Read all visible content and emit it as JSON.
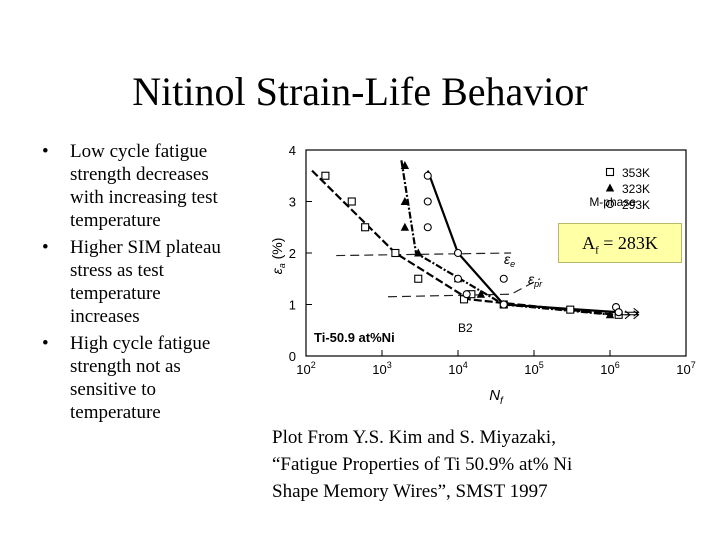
{
  "slide": {
    "title": "Nitinol Strain-Life Behavior",
    "bullets": [
      "Low cycle fatigue strength decreases with increasing test temperature",
      "Higher SIM plateau stress as test temperature increases",
      "High cycle fatigue strength not as sensitive to temperature"
    ],
    "af_callout": {
      "prefix": "A",
      "sub": "f",
      "suffix": " = 283K"
    },
    "caption_lines": [
      "Plot From Y.S. Kim and S. Miyazaki,",
      "“Fatigue Properties of Ti 50.9% at% Ni",
      "Shape Memory Wires”, SMST 1997"
    ],
    "bullet_glyph": "•"
  },
  "chart_data": {
    "type": "scatter",
    "x_scale": "log",
    "xlim": [
      100,
      10000000
    ],
    "ylim": [
      0,
      4
    ],
    "x_ticks": [
      {
        "value": 100,
        "base": "10",
        "exp": "2"
      },
      {
        "value": 1000,
        "base": "10",
        "exp": "3"
      },
      {
        "value": 10000,
        "base": "10",
        "exp": "4"
      },
      {
        "value": 100000,
        "base": "10",
        "exp": "5"
      },
      {
        "value": 1000000,
        "base": "10",
        "exp": "6"
      },
      {
        "value": 10000000,
        "base": "10",
        "exp": "7"
      }
    ],
    "y_ticks": [
      0,
      1,
      2,
      3,
      4
    ],
    "xlabel": {
      "main": "N",
      "sub": "f"
    },
    "ylabel": {
      "main": "ε",
      "sub": "a",
      "suffix": " (%)"
    },
    "legend_position": "top-right",
    "annotations": {
      "m_phase": "M-phase",
      "b2": "B2",
      "alloy": "Ti-50.9 at%Ni",
      "eps_e": {
        "main": "ε",
        "sub": "e"
      },
      "eps_pr": {
        "main": "ε",
        "sub": "pr"
      }
    },
    "series": [
      {
        "name": "353K",
        "marker": "square",
        "points": [
          [
            180,
            3.5
          ],
          [
            400,
            3.0
          ],
          [
            600,
            2.5
          ],
          [
            1500,
            2.0
          ],
          [
            3000,
            1.5
          ],
          [
            12000,
            1.1
          ],
          [
            15000,
            1.2
          ],
          [
            40000,
            1.0
          ],
          [
            300000,
            0.9
          ],
          [
            1300000,
            0.8
          ]
        ],
        "trend": [
          [
            120,
            3.6
          ],
          [
            1500,
            2.0
          ],
          [
            14000,
            1.1
          ],
          [
            1200000,
            0.8
          ]
        ]
      },
      {
        "name": "323K",
        "marker": "triangle",
        "points": [
          [
            2000,
            3.7
          ],
          [
            2000,
            3.0
          ],
          [
            2000,
            2.5
          ],
          [
            3000,
            2.0
          ],
          [
            10000,
            1.5
          ],
          [
            20000,
            1.2
          ],
          [
            40000,
            1.0
          ],
          [
            1000000,
            0.8
          ]
        ],
        "trend": [
          [
            1800,
            3.8
          ],
          [
            2800,
            2.0
          ],
          [
            40000,
            1.0
          ],
          [
            1100000,
            0.8
          ]
        ]
      },
      {
        "name": "293K",
        "marker": "circle",
        "points": [
          [
            4000,
            3.5
          ],
          [
            4000,
            3.0
          ],
          [
            4000,
            2.5
          ],
          [
            10000,
            2.0
          ],
          [
            10000,
            1.5
          ],
          [
            13000,
            1.2
          ],
          [
            40000,
            1.5
          ],
          [
            40000,
            1.0
          ],
          [
            1200000,
            0.95
          ],
          [
            1300000,
            0.85
          ]
        ],
        "trend": [
          [
            4000,
            3.6
          ],
          [
            10000,
            2.0
          ],
          [
            40000,
            1.0
          ],
          [
            1300000,
            0.85
          ]
        ]
      }
    ],
    "reference_lines": [
      {
        "name": "eps_e",
        "points": [
          [
            250,
            1.95
          ],
          [
            50000,
            2.0
          ]
        ]
      },
      {
        "name": "eps_pr",
        "points": [
          [
            1200,
            1.15
          ],
          [
            50000,
            1.2
          ],
          [
            120000,
            1.5
          ]
        ]
      }
    ]
  }
}
